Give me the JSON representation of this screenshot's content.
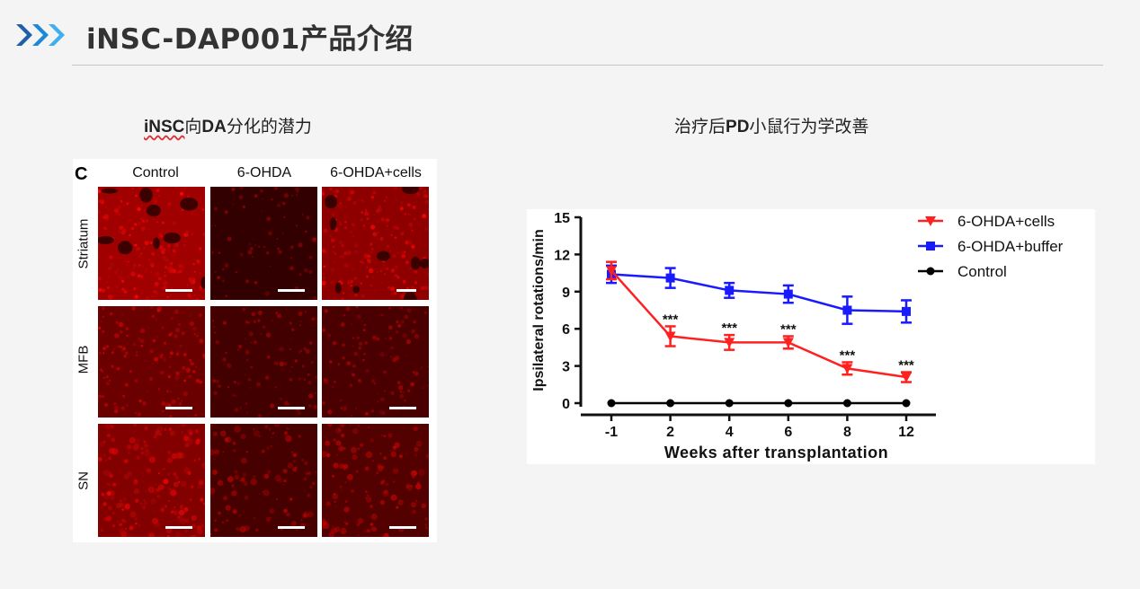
{
  "header": {
    "title": "iNSC-DAP001产品介绍",
    "icon": "triple-chevron-right-icon",
    "accent_color": "#1e88d6"
  },
  "captions": {
    "left_bold_a": "iNSC",
    "left_mid": "向",
    "left_bold_b": "DA",
    "left_tail": "分化的潜力",
    "right_head": "治疗后",
    "right_bold": "PD",
    "right_tail": "小鼠行为学改善"
  },
  "micrograph_panel": {
    "panel_letter": "C",
    "columns": [
      "Control",
      "6-OHDA",
      "6-OHDA+cells"
    ],
    "rows": [
      "Striatum",
      "MFB",
      "SN"
    ],
    "fluorescence_color": "#ff1a1a"
  },
  "chart_data": {
    "type": "line",
    "x": [
      "-1",
      "2",
      "4",
      "6",
      "8",
      "12"
    ],
    "xlabel": "Weeks after transplantation",
    "ylabel": "Ipsilateral rotations/min",
    "ylim": [
      0,
      15
    ],
    "yticks": [
      0,
      3,
      6,
      9,
      12,
      15
    ],
    "legend_position": "top-right",
    "grid": false,
    "series": [
      {
        "name": "6-OHDA+cells",
        "color": "#ff2020",
        "marker": "triangle-down",
        "values": [
          10.7,
          5.4,
          4.9,
          4.9,
          2.8,
          2.1
        ],
        "errors": [
          0.7,
          0.8,
          0.6,
          0.5,
          0.5,
          0.4
        ]
      },
      {
        "name": "6-OHDA+buffer",
        "color": "#1a1aff",
        "marker": "square",
        "values": [
          10.4,
          10.1,
          9.1,
          8.8,
          7.5,
          7.4
        ],
        "errors": [
          0.7,
          0.8,
          0.6,
          0.7,
          1.1,
          0.9
        ]
      },
      {
        "name": "Control",
        "color": "#000000",
        "marker": "circle",
        "values": [
          0,
          0,
          0,
          0,
          0,
          0
        ],
        "errors": [
          0,
          0,
          0,
          0,
          0,
          0
        ]
      }
    ],
    "annotations": [
      "",
      "***",
      "***",
      "***",
      "***",
      "***"
    ]
  }
}
